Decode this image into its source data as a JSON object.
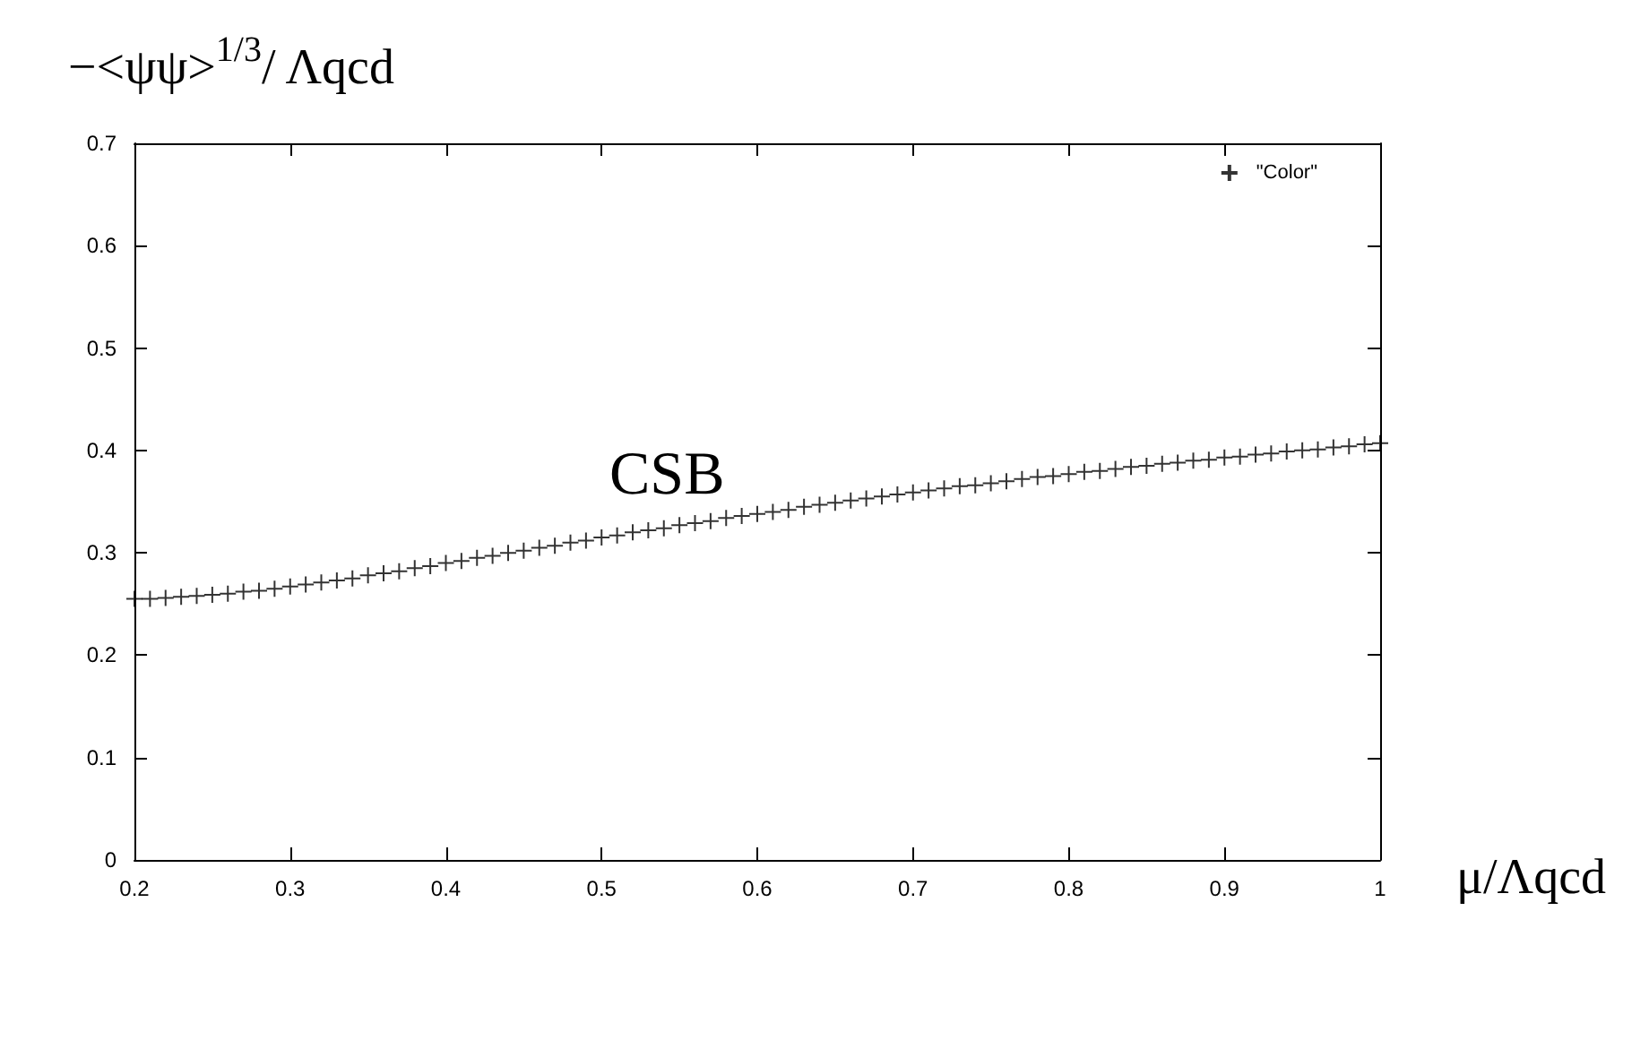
{
  "chart_data": {
    "type": "scatter",
    "ylabel": "−<ψψ>$^{1/3}$/ Λqcd",
    "xlabel": "μ/Λqcd",
    "annotations": [
      "CSB"
    ],
    "xlim": [
      0.2,
      1
    ],
    "xticks": [
      0.2,
      0.3,
      0.4,
      0.5,
      0.6,
      0.7,
      0.8,
      0.9,
      1
    ],
    "ylim": [
      0,
      0.7
    ],
    "yticks": [
      0,
      0.1,
      0.2,
      0.3,
      0.4,
      0.5,
      0.6,
      0.7
    ],
    "legend": "top right",
    "marker": "cross",
    "grid": false,
    "series": [
      {
        "name": "\"Color\"",
        "color": "#000000",
        "x": [
          0.2,
          0.21,
          0.22,
          0.23,
          0.24,
          0.25,
          0.26,
          0.27,
          0.28,
          0.29,
          0.3,
          0.31,
          0.32,
          0.33,
          0.34,
          0.35,
          0.36,
          0.37,
          0.38,
          0.39,
          0.4,
          0.41,
          0.42,
          0.43,
          0.44,
          0.45,
          0.46,
          0.47,
          0.48,
          0.49,
          0.5,
          0.51,
          0.52,
          0.53,
          0.54,
          0.55,
          0.56,
          0.57,
          0.58,
          0.59,
          0.6,
          0.61,
          0.62,
          0.63,
          0.64,
          0.65,
          0.66,
          0.67,
          0.68,
          0.69,
          0.7,
          0.71,
          0.72,
          0.73,
          0.74,
          0.75,
          0.76,
          0.77,
          0.78,
          0.79,
          0.8,
          0.81,
          0.82,
          0.83,
          0.84,
          0.85,
          0.86,
          0.87,
          0.88,
          0.89,
          0.9,
          0.91,
          0.92,
          0.93,
          0.94,
          0.95,
          0.96,
          0.97,
          0.98,
          0.99,
          1
        ],
        "values": [
          0.255,
          0.255,
          0.256,
          0.257,
          0.258,
          0.259,
          0.26,
          0.262,
          0.263,
          0.265,
          0.267,
          0.269,
          0.271,
          0.273,
          0.275,
          0.278,
          0.28,
          0.282,
          0.285,
          0.287,
          0.29,
          0.292,
          0.295,
          0.297,
          0.3,
          0.302,
          0.305,
          0.307,
          0.31,
          0.312,
          0.315,
          0.317,
          0.32,
          0.322,
          0.324,
          0.327,
          0.329,
          0.331,
          0.334,
          0.336,
          0.338,
          0.34,
          0.342,
          0.345,
          0.347,
          0.349,
          0.351,
          0.353,
          0.355,
          0.357,
          0.359,
          0.361,
          0.363,
          0.365,
          0.366,
          0.368,
          0.37,
          0.372,
          0.374,
          0.375,
          0.377,
          0.379,
          0.38,
          0.382,
          0.384,
          0.385,
          0.387,
          0.388,
          0.39,
          0.391,
          0.393,
          0.394,
          0.396,
          0.397,
          0.399,
          0.4,
          0.401,
          0.403,
          0.404,
          0.406,
          0.407
        ]
      }
    ]
  }
}
